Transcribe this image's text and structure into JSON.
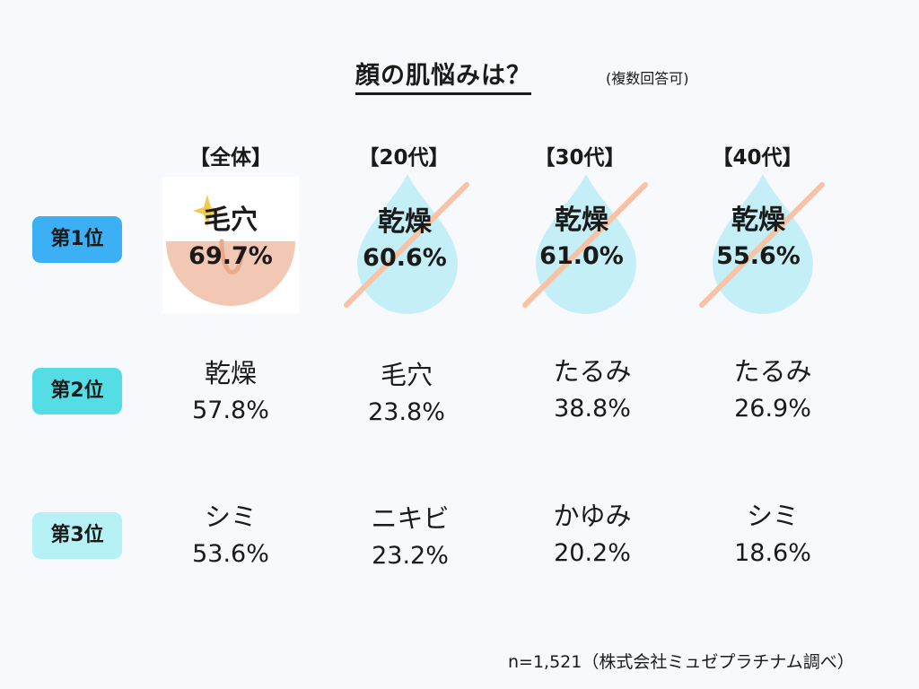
{
  "title": "顔の肌悩みは？",
  "title_note": "(複数回答可)",
  "columns": [
    "【全体】",
    "【20代】",
    "【30代】",
    "【40代】"
  ],
  "ranks": [
    "第1位",
    "第2位",
    "第3位"
  ],
  "rank_colors": [
    "#3bb0f4",
    "#55dde6",
    "#b6f1f6"
  ],
  "icon_names": [
    "pore-icon",
    "water-drop-icon",
    "water-drop-icon",
    "water-drop-icon"
  ],
  "colors": {
    "pore_skin": "#f2c8b4",
    "drop": "#c5eff6",
    "slash": "#f7c3a4",
    "sparkle": "#f2c94c"
  },
  "chart_data": {
    "type": "table",
    "columns": [
      "全体",
      "20代",
      "30代",
      "40代"
    ],
    "rows": [
      {
        "rank": "第1位",
        "cells": [
          {
            "label": "毛穴",
            "value": "69.7%"
          },
          {
            "label": "乾燥",
            "value": "60.6%"
          },
          {
            "label": "乾燥",
            "value": "61.0%"
          },
          {
            "label": "乾燥",
            "value": "55.6%"
          }
        ]
      },
      {
        "rank": "第2位",
        "cells": [
          {
            "label": "乾燥",
            "value": "57.8%"
          },
          {
            "label": "毛穴",
            "value": "23.8%"
          },
          {
            "label": "たるみ",
            "value": "38.8%"
          },
          {
            "label": "たるみ",
            "value": "26.9%"
          }
        ]
      },
      {
        "rank": "第3位",
        "cells": [
          {
            "label": "シミ",
            "value": "53.6%"
          },
          {
            "label": "ニキビ",
            "value": "23.2%"
          },
          {
            "label": "かゆみ",
            "value": "20.2%"
          },
          {
            "label": "シミ",
            "value": "18.6%"
          }
        ]
      }
    ]
  },
  "footer": "n=1,521（株式会社ミュゼプラチナム調べ）"
}
